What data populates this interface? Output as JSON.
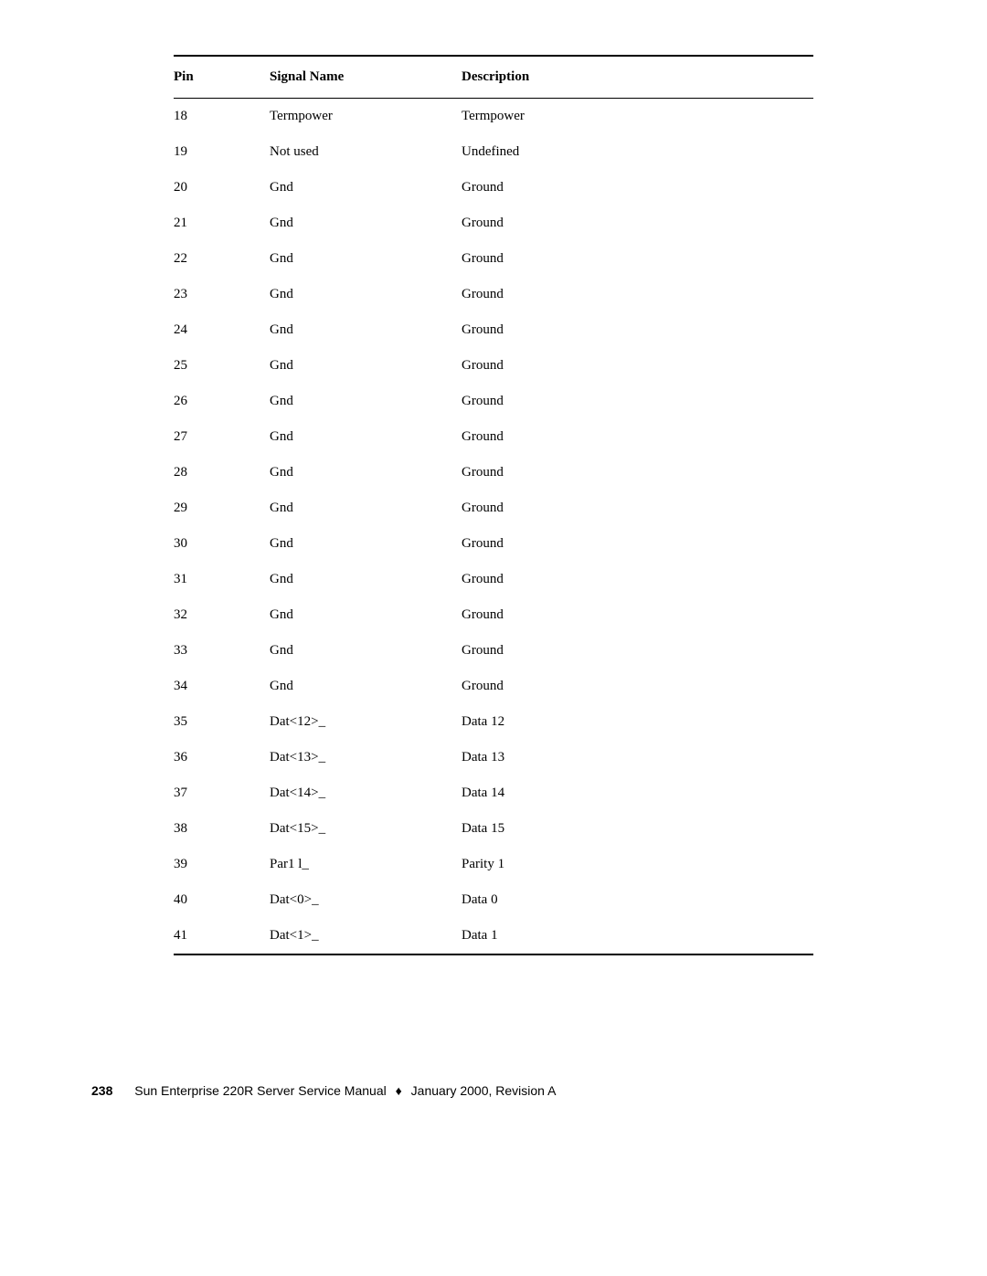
{
  "table": {
    "headers": {
      "pin": "Pin",
      "signal": "Signal Name",
      "desc": "Description"
    },
    "rows": [
      {
        "pin": "18",
        "signal": "Termpower",
        "desc": "Termpower"
      },
      {
        "pin": "19",
        "signal": "Not used",
        "desc": "Undefined"
      },
      {
        "pin": "20",
        "signal": "Gnd",
        "desc": "Ground"
      },
      {
        "pin": "21",
        "signal": "Gnd",
        "desc": "Ground"
      },
      {
        "pin": "22",
        "signal": "Gnd",
        "desc": "Ground"
      },
      {
        "pin": "23",
        "signal": "Gnd",
        "desc": "Ground"
      },
      {
        "pin": "24",
        "signal": "Gnd",
        "desc": "Ground"
      },
      {
        "pin": "25",
        "signal": "Gnd",
        "desc": "Ground"
      },
      {
        "pin": "26",
        "signal": "Gnd",
        "desc": "Ground"
      },
      {
        "pin": "27",
        "signal": "Gnd",
        "desc": "Ground"
      },
      {
        "pin": "28",
        "signal": "Gnd",
        "desc": "Ground"
      },
      {
        "pin": "29",
        "signal": "Gnd",
        "desc": "Ground"
      },
      {
        "pin": "30",
        "signal": "Gnd",
        "desc": "Ground"
      },
      {
        "pin": "31",
        "signal": "Gnd",
        "desc": "Ground"
      },
      {
        "pin": "32",
        "signal": "Gnd",
        "desc": "Ground"
      },
      {
        "pin": "33",
        "signal": "Gnd",
        "desc": "Ground"
      },
      {
        "pin": "34",
        "signal": "Gnd",
        "desc": "Ground"
      },
      {
        "pin": "35",
        "signal": "Dat<12>_",
        "desc": "Data 12"
      },
      {
        "pin": "36",
        "signal": "Dat<13>_",
        "desc": "Data 13"
      },
      {
        "pin": "37",
        "signal": "Dat<14>_",
        "desc": "Data 14"
      },
      {
        "pin": "38",
        "signal": "Dat<15>_",
        "desc": "Data 15"
      },
      {
        "pin": "39",
        "signal": "Par1 l_",
        "desc": "Parity 1"
      },
      {
        "pin": "40",
        "signal": "Dat<0>_",
        "desc": "Data 0"
      },
      {
        "pin": "41",
        "signal": "Dat<1>_",
        "desc": "Data 1"
      }
    ]
  },
  "footer": {
    "page_number": "238",
    "title": "Sun Enterprise 220R Server Service Manual",
    "separator": "♦",
    "revision": "January 2000, Revision A"
  }
}
